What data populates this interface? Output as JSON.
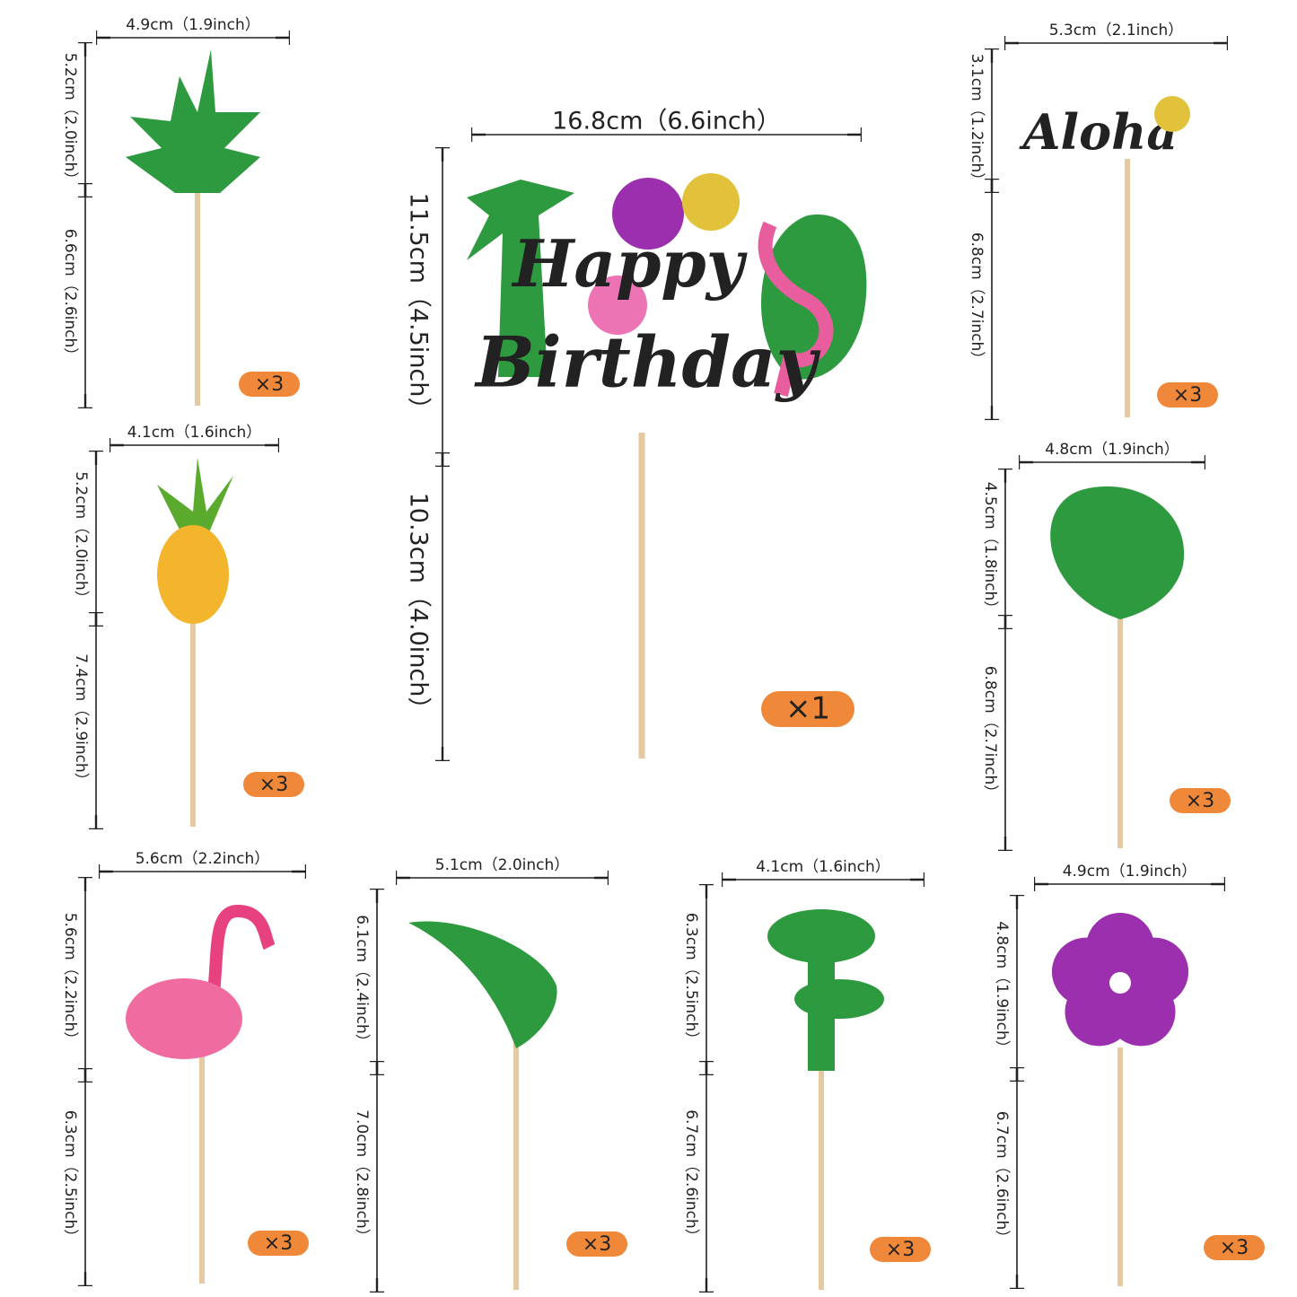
{
  "items": [
    {
      "width": "4.9cm（1.9inch）",
      "top_height": "5.2cm（2.0inch）",
      "bottom_height": "6.6cm（2.6inch）",
      "quantity": "×3"
    },
    {
      "width": "4.1cm（1.6inch）",
      "top_height": "5.2cm（2.0inch）",
      "bottom_height": "7.4cm（2.9inch）",
      "quantity": "×3"
    },
    {
      "width": "5.6cm（2.2inch）",
      "top_height": "5.6cm（2.2inch）",
      "bottom_height": "6.3cm（2.5inch）",
      "quantity": "×3"
    },
    {
      "width": "5.1cm（2.0inch）",
      "top_height": "6.1cm（2.4inch）",
      "bottom_height": "7.0cm（2.8inch）",
      "quantity": "×3"
    },
    {
      "width": "4.1cm（1.6inch）",
      "top_height": "6.3cm（2.5inch）",
      "bottom_height": "6.7cm（2.6inch）",
      "quantity": "×3"
    },
    {
      "width": "4.9cm（1.9inch）",
      "top_height": "4.8cm（1.9inch）",
      "bottom_height": "6.7cm（2.6inch）",
      "quantity": "×3"
    },
    {
      "width": "4.8cm（1.9inch）",
      "top_height": "4.5cm（1.8inch）",
      "bottom_height": "6.8cm（2.7inch）",
      "quantity": "×3"
    },
    {
      "width": "5.3cm（2.1inch）",
      "top_height": "3.1cm（1.2inch）",
      "bottom_height": "6.8cm（2.7inch）",
      "quantity": "×3",
      "artwork_text": "Aloha"
    },
    {
      "width": "16.8cm（6.6inch）",
      "top_height": "11.5cm（4.5inch）",
      "bottom_height": "10.3cm（4.0inch）",
      "quantity": "×1",
      "artwork_text": [
        "Happy",
        "Birthday"
      ]
    }
  ]
}
